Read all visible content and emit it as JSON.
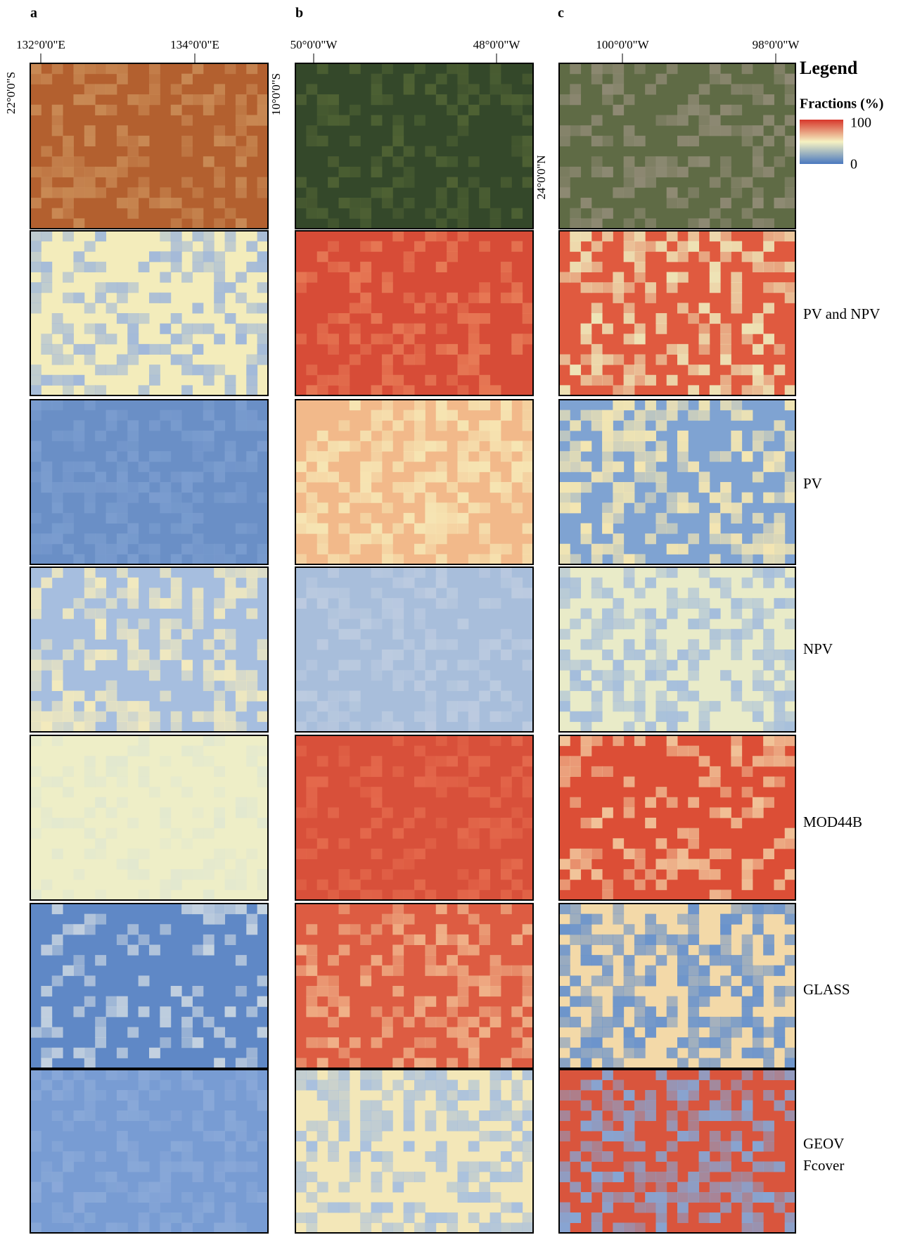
{
  "panels": [
    {
      "label": "a",
      "lon_ticks": [
        "132°0'0\"E",
        "134°0'0\"E"
      ],
      "lat_tick": "22°0'0\"S"
    },
    {
      "label": "b",
      "lon_ticks": [
        "50°0'0\"W",
        "48°0'0\"W"
      ],
      "lat_tick": "10°0'0\"S"
    },
    {
      "label": "c",
      "lon_ticks": [
        "100°0'0\"W",
        "98°0'0\"W"
      ],
      "lat_tick": "24°0'0\"N"
    }
  ],
  "legend": {
    "title": "Legend",
    "subtitle": "Fractions (%)",
    "max_label": "100",
    "min_label": "0"
  },
  "rows": [
    [
      "PV and NPV"
    ],
    [
      "PV"
    ],
    [
      "NPV"
    ],
    [
      "MOD44B"
    ],
    [
      "GLASS"
    ],
    [
      "GEOV",
      "Fcover"
    ]
  ]
}
